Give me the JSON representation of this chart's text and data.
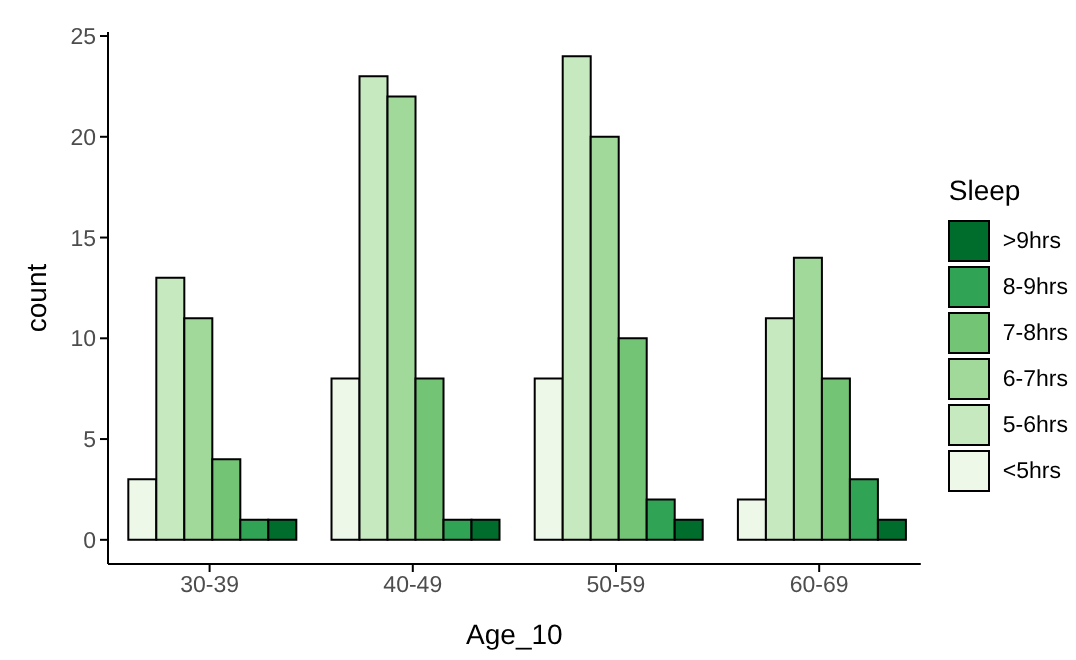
{
  "chart_data": {
    "type": "bar",
    "xlabel": "Age_10",
    "ylabel": "count",
    "legend_title": "Sleep",
    "legend": "right",
    "grid": false,
    "categories": [
      "30-39",
      "40-49",
      "50-59",
      "60-69"
    ],
    "ylim": [
      -1.2,
      25.2
    ],
    "yticks": [
      0,
      5,
      10,
      15,
      20,
      25
    ],
    "series": [
      {
        "name": "<5hrs",
        "color": "#edf8e9",
        "values": [
          3,
          8,
          8,
          2
        ]
      },
      {
        "name": "5-6hrs",
        "color": "#c7e9c0",
        "values": [
          13,
          23,
          24,
          11
        ]
      },
      {
        "name": "6-7hrs",
        "color": "#a1d99b",
        "values": [
          11,
          22,
          20,
          14
        ]
      },
      {
        "name": "7-8hrs",
        "color": "#74c476",
        "values": [
          4,
          8,
          10,
          8
        ]
      },
      {
        "name": "8-9hrs",
        "color": "#31a354",
        "values": [
          1,
          1,
          2,
          3
        ]
      },
      {
        "name": ">9hrs",
        "color": "#006d2c",
        "values": [
          1,
          1,
          1,
          1
        ]
      }
    ]
  }
}
